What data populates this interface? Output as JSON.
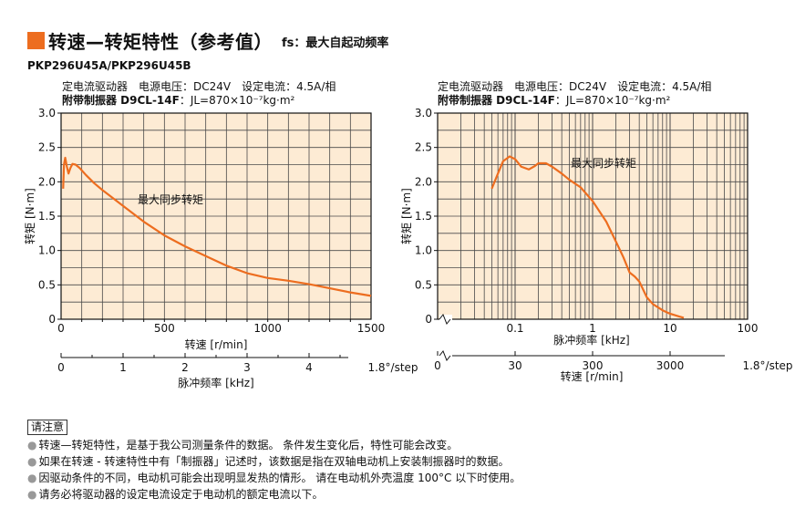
{
  "header": {
    "title": "转速—转矩特性（参考值）",
    "fs_note": "fs：最大自起动频率"
  },
  "model": "PKP296U45A/PKP296U45B",
  "left_spec": {
    "line1": "定电流驱动器　电源电压：DC24V　设定电流：4.5A/相",
    "line2_bold": "附带制振器 D9CL-14F",
    "line2_rest": "：JL=870×10⁻⁷kg·m²"
  },
  "right_spec": {
    "line1": "定电流驱动器　电源电压：DC24V　设定电流：4.5A/相",
    "line2_bold": "附带制振器 D9CL-14F",
    "line2_rest": "：JL=870×10⁻⁷kg·m²"
  },
  "chart_data": [
    {
      "type": "line",
      "ylabel": "转矩 [N·m]",
      "xlabel": "转速 [r/min]",
      "xlabel2": "脉冲频率 [kHz]",
      "x2_step_note": "1.8°/step",
      "xlim": [
        0,
        1500
      ],
      "ylim": [
        0,
        3.0
      ],
      "x_ticks": [
        0,
        500,
        1000,
        1500
      ],
      "y_ticks": [
        "0",
        "0.5",
        "1.0",
        "1.5",
        "2.0",
        "2.5",
        "3.0"
      ],
      "x2_ticks": [
        "0",
        "1",
        "2",
        "3",
        "4"
      ],
      "grid": true,
      "annotation": "最大同步转矩",
      "series": [
        {
          "color": "#ed6d1f",
          "x": [
            10,
            14,
            20,
            28,
            36,
            45,
            55,
            70,
            90,
            120,
            160,
            200,
            300,
            400,
            500,
            600,
            700,
            800,
            900,
            1000,
            1100,
            1200,
            1300,
            1400,
            1500
          ],
          "y": [
            1.9,
            2.25,
            2.35,
            2.22,
            2.12,
            2.2,
            2.26,
            2.25,
            2.2,
            2.1,
            1.98,
            1.88,
            1.65,
            1.42,
            1.22,
            1.06,
            0.92,
            0.78,
            0.67,
            0.6,
            0.56,
            0.51,
            0.45,
            0.39,
            0.34
          ]
        }
      ]
    },
    {
      "type": "line",
      "ylabel": "转矩 [N·m]",
      "xlabel": "脉冲频率 [kHz]",
      "xlabel2": "转速 [r/min]",
      "x2_step_note": "1.8°/step",
      "x_scale": "log",
      "xlim": [
        0.01,
        100
      ],
      "ylim": [
        0,
        3.0
      ],
      "x_ticks": [
        "0.1",
        "1",
        "10",
        "100"
      ],
      "y_ticks": [
        "0",
        "0.5",
        "1.0",
        "1.5",
        "2.0",
        "2.5",
        "3.0"
      ],
      "x2_ticks": [
        "0",
        "30",
        "300",
        "3000"
      ],
      "grid": true,
      "annotation": "最大同步转矩",
      "series": [
        {
          "color": "#ed6d1f",
          "x": [
            0.05,
            0.06,
            0.07,
            0.085,
            0.1,
            0.12,
            0.15,
            0.18,
            0.2,
            0.25,
            0.3,
            0.4,
            0.5,
            0.7,
            1.0,
            1.5,
            2.0,
            2.5,
            3.0,
            3.5,
            4.0,
            5.0,
            6.0,
            8.0,
            10.0,
            13.0,
            15.0
          ],
          "y": [
            1.9,
            2.12,
            2.3,
            2.37,
            2.33,
            2.22,
            2.18,
            2.23,
            2.27,
            2.27,
            2.22,
            2.12,
            2.03,
            1.92,
            1.72,
            1.42,
            1.13,
            0.9,
            0.68,
            0.62,
            0.55,
            0.32,
            0.22,
            0.13,
            0.08,
            0.04,
            0.02
          ]
        }
      ]
    }
  ],
  "notes": {
    "heading": "请注意",
    "items": [
      "转速—转矩特性，是基于我公司测量条件的数据。 条件发生变化后，特性可能会改变。",
      "如果在转速 - 转速特性中有「制振器」记述时，该数据是指在双轴电动机上安装制振器时的数据。",
      "因驱动条件的不同，电动机可能会出现明显发热的情形。 请在电动机外壳温度 100°C 以下时使用。",
      "请务必将驱动器的设定电流设定于电动机的额定电流以下。"
    ]
  }
}
